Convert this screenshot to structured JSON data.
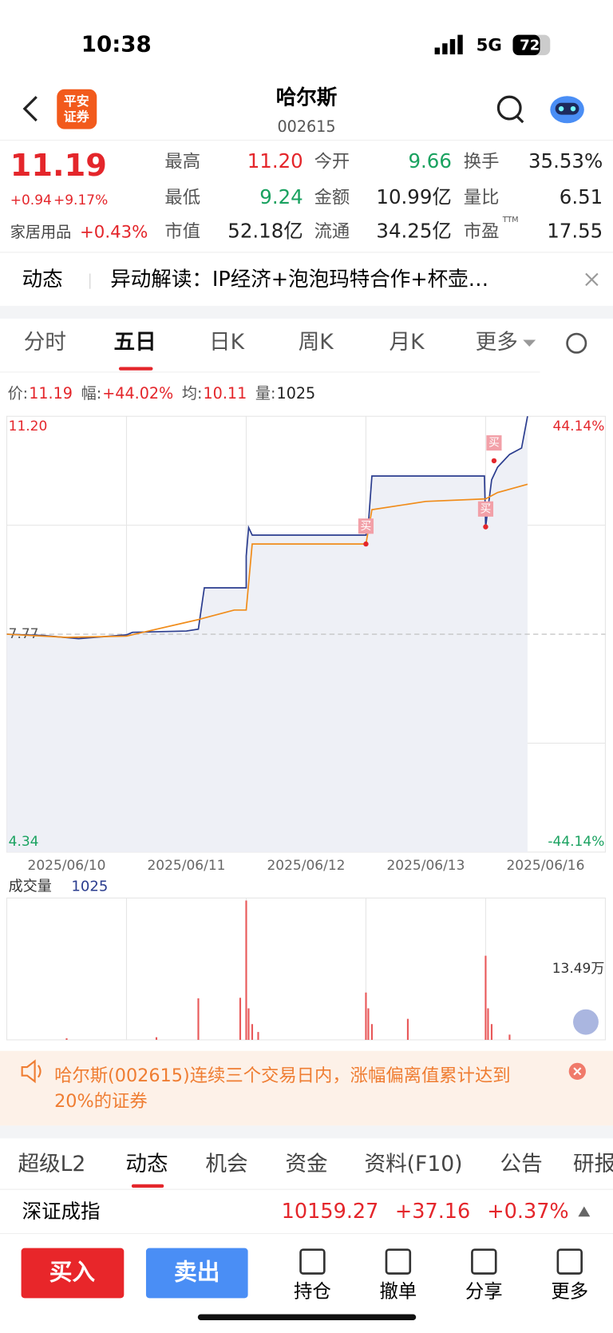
{
  "status": {
    "time": "10:38",
    "network": "5G",
    "battery": "72"
  },
  "header": {
    "logo": [
      "平安",
      "证券"
    ],
    "name": "哈尔斯",
    "code": "002615"
  },
  "quote": {
    "price": "11.19",
    "change": "+0.94",
    "pct": "+9.17%",
    "sector": "家居用品",
    "sector_pct": "+0.43%",
    "stats": [
      {
        "label": "最高",
        "value": "11.20"
      },
      {
        "label": "今开",
        "value": "9.66"
      },
      {
        "label": "换手",
        "value": "35.53%"
      },
      {
        "label": "最低",
        "value": "9.24"
      },
      {
        "label": "金额",
        "value": "10.99亿"
      },
      {
        "label": "量比",
        "value": "6.51"
      },
      {
        "label": "市值",
        "value": "52.18亿"
      },
      {
        "label": "流通",
        "value": "34.25亿"
      },
      {
        "label": "市盈",
        "sup": "TTM",
        "value": "17.55"
      }
    ]
  },
  "news": {
    "tag": "动态",
    "text": "异动解读：IP经济+泡泡玛特合作+杯壶…"
  },
  "tabs": [
    "分时",
    "五日",
    "日K",
    "周K",
    "月K",
    "更多"
  ],
  "info": [
    {
      "label": "价:",
      "value": "11.19"
    },
    {
      "label": "幅:",
      "value": "+44.02%"
    },
    {
      "label": "均:",
      "value": "10.11"
    },
    {
      "label": "量:",
      "value": "1025"
    }
  ],
  "price_chart": {
    "type": "line",
    "categories": [
      "2025/06/10",
      "2025/06/11",
      "2025/06/12",
      "2025/06/13",
      "2025/06/16"
    ],
    "xlim": [
      0,
      5
    ],
    "ylim": [
      4.34,
      11.2
    ],
    "yticks": [
      {
        "value": 11.2,
        "label": "11.20"
      },
      7.77,
      4.34
    ],
    "y2lim": [
      -44.14,
      44.14
    ],
    "y2ticks": [
      {
        "value": 44.14,
        "label": "44.14%"
      },
      {
        "value": -44.14,
        "label": "-44.14%"
      }
    ],
    "series": [
      {
        "name": "价",
        "color": "#2b3d8f",
        "x": [
          0,
          0.3,
          0.6,
          1.0,
          1.05,
          1.5,
          1.6,
          1.65,
          1.9,
          2.0,
          2.0,
          2.02,
          2.05,
          3.0,
          3.02,
          3.05,
          3.8,
          3.99,
          4.0,
          4.05,
          4.1,
          4.2,
          4.3,
          4.35
        ],
        "values": [
          7.77,
          7.75,
          7.7,
          7.76,
          7.8,
          7.82,
          7.85,
          8.5,
          8.5,
          8.5,
          9.0,
          9.45,
          9.33,
          9.33,
          9.5,
          10.26,
          10.26,
          10.26,
          9.46,
          10.2,
          10.4,
          10.6,
          10.7,
          11.2
        ]
      },
      {
        "name": "均",
        "color": "#f08c1a",
        "x": [
          0,
          0.5,
          1.0,
          1.6,
          1.9,
          2.0,
          2.05,
          3.0,
          3.05,
          3.5,
          4.0,
          4.1,
          4.35
        ],
        "values": [
          7.77,
          7.72,
          7.74,
          8.0,
          8.15,
          8.15,
          9.19,
          9.19,
          9.73,
          9.86,
          9.9,
          10.0,
          10.13
        ]
      }
    ],
    "markers": [
      {
        "label": "买",
        "x": 3.0,
        "y": 9.19
      },
      {
        "label": "买",
        "x": 4.0,
        "y": 9.46
      },
      {
        "label": "买",
        "x": 4.07,
        "y": 10.5
      }
    ]
  },
  "volume_chart": {
    "type": "bar",
    "title": "成交量",
    "current": "1025",
    "xlim": [
      0,
      5
    ],
    "ylim": [
      0,
      26.98
    ],
    "yticks": [
      {
        "value": 13.49,
        "label": "13.49万"
      }
    ],
    "color": "#e8595a",
    "x": [
      0.5,
      1.25,
      1.6,
      1.95,
      2.0,
      2.02,
      2.05,
      2.1,
      3.0,
      3.02,
      3.05,
      3.35,
      4.0,
      4.02,
      4.05,
      4.2
    ],
    "values": [
      0.3,
      0.5,
      7.9,
      8,
      26.5,
      6,
      3,
      1.5,
      9,
      6,
      3,
      4,
      16,
      6,
      3,
      1
    ]
  },
  "notice": "哈尔斯(002615)连续三个交易日内，涨幅偏离值累计达到20%的证券",
  "bottom_tabs": [
    "超级L2",
    "动态",
    "机会",
    "资金",
    "资料(F10)",
    "公告",
    "研报"
  ],
  "index": {
    "name": "深证成指",
    "value": "10159.27",
    "change": "+37.16",
    "pct": "+0.37%"
  },
  "actions": {
    "buy": "买入",
    "sell": "卖出",
    "tools": [
      "持仓",
      "撤单",
      "分享",
      "更多"
    ]
  }
}
